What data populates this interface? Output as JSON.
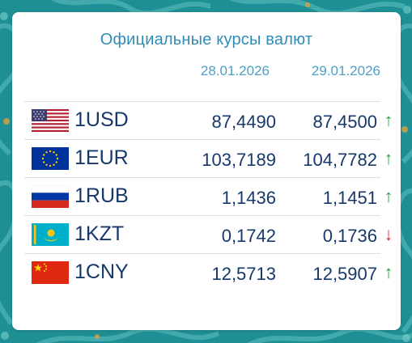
{
  "title": "Официальные курсы валют",
  "dates": [
    "28.01.2026",
    "29.01.2026"
  ],
  "colors": {
    "accent": "#2e8cb8",
    "text": "#16386a",
    "up": "#2aa24a",
    "down": "#d0312d",
    "background": "#1f8f96"
  },
  "rates": [
    {
      "code": "1USD",
      "flag": "usa-flag-icon",
      "prev": "87,4490",
      "curr": "87,4500",
      "trend": "↑",
      "trend_dir": "up"
    },
    {
      "code": "1EUR",
      "flag": "eu-flag-icon",
      "prev": "103,7189",
      "curr": "104,7782",
      "trend": "↑",
      "trend_dir": "up"
    },
    {
      "code": "1RUB",
      "flag": "russia-flag-icon",
      "prev": "1,1436",
      "curr": "1,1451",
      "trend": "↑",
      "trend_dir": "up"
    },
    {
      "code": "1KZT",
      "flag": "kazakhstan-flag-icon",
      "prev": "0,1742",
      "curr": "0,1736",
      "trend": "↓",
      "trend_dir": "down"
    },
    {
      "code": "1CNY",
      "flag": "china-flag-icon",
      "prev": "12,5713",
      "curr": "12,5907",
      "trend": "↑",
      "trend_dir": "up"
    }
  ]
}
